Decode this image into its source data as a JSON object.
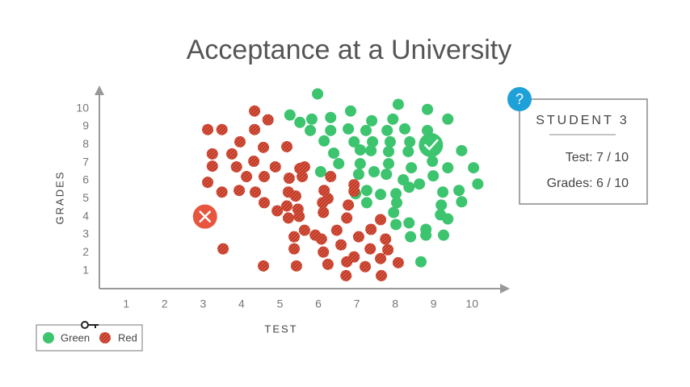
{
  "chart_data": {
    "type": "scatter",
    "title": "Acceptance at a University",
    "x_label": "TEST",
    "y_label": "GRADES",
    "xlim": [
      0.3,
      10.9
    ],
    "ylim": [
      0,
      11.1
    ],
    "xticks": [
      1,
      2,
      3,
      4,
      5,
      6,
      7,
      8,
      9,
      10
    ],
    "yticks": [
      1,
      2,
      3,
      4,
      5,
      6,
      7,
      8,
      9,
      10
    ],
    "grid": false,
    "legend": "bottom-left",
    "series": [
      {
        "name": "Green",
        "color": "#3dc46f",
        "hatch": false,
        "x": [
          5.98,
          6.84,
          8.08,
          8.84,
          5.26,
          5.83,
          6.32,
          5.52,
          7.39,
          7.94,
          9.37,
          5.79,
          6.32,
          6.78,
          7.24,
          7.79,
          8.25,
          8.84,
          6.15,
          6.93,
          7.41,
          7.87,
          8.38,
          6.4,
          7.09,
          7.37,
          7.83,
          8.34,
          9.73,
          6.53,
          7.09,
          7.83,
          8.42,
          8.97,
          9.37,
          10.04,
          6.06,
          7.05,
          7.45,
          7.77,
          8.21,
          8.63,
          8.99,
          10.15,
          6.97,
          7.26,
          7.62,
          8.02,
          8.36,
          9.24,
          9.66,
          7.26,
          8.04,
          9.2,
          9.73,
          7.96,
          9.18,
          9.37,
          8.02,
          8.36,
          8.8,
          8.8,
          9.26,
          8.4,
          8.67
        ],
        "values": [
          10.81,
          9.86,
          10.23,
          9.95,
          9.64,
          9.41,
          9.5,
          9.23,
          9.32,
          9.41,
          9.41,
          8.78,
          8.78,
          8.87,
          8.78,
          8.78,
          8.87,
          8.78,
          8.2,
          8.15,
          8.15,
          8.15,
          8.15,
          7.52,
          7.7,
          7.66,
          7.61,
          7.61,
          7.66,
          6.94,
          6.94,
          6.94,
          6.71,
          7.07,
          6.71,
          6.71,
          6.49,
          6.35,
          6.49,
          6.35,
          6.04,
          5.81,
          6.26,
          5.81,
          5.27,
          5.45,
          5.23,
          5.27,
          5.63,
          5.36,
          5.45,
          4.77,
          4.77,
          4.64,
          4.82,
          4.23,
          4.1,
          3.87,
          3.56,
          3.65,
          3.29,
          2.97,
          2.97,
          2.88,
          1.49
        ]
      },
      {
        "name": "Red",
        "color": "#e8553f",
        "hatch": true,
        "x": [
          4.34,
          3.12,
          3.49,
          4.34,
          4.69,
          3.96,
          4.57,
          5.18,
          3.24,
          3.75,
          4.32,
          3.24,
          3.87,
          4.13,
          4.59,
          4.88,
          5.52,
          5.64,
          5.24,
          5.58,
          6.32,
          3.12,
          3.49,
          3.94,
          4.36,
          5.22,
          5.41,
          6.15,
          6.25,
          6.93,
          6.93,
          4.59,
          4.93,
          5.18,
          5.47,
          5.22,
          5.5,
          6.11,
          6.13,
          6.78,
          6.74,
          7.62,
          5.37,
          5.64,
          5.92,
          6.08,
          6.48,
          7.05,
          7.37,
          7.75,
          3.52,
          5.37,
          6.13,
          6.59,
          7.35,
          7.81,
          4.57,
          5.43,
          6.25,
          6.74,
          6.93,
          7.22,
          7.62,
          8.08,
          6.72,
          7.64
        ],
        "values": [
          9.86,
          8.83,
          8.83,
          8.83,
          9.37,
          8.15,
          7.84,
          7.88,
          7.48,
          7.48,
          7.07,
          6.8,
          6.76,
          6.22,
          6.22,
          6.76,
          6.67,
          6.76,
          6.13,
          6.22,
          6.22,
          5.9,
          5.36,
          5.45,
          5.36,
          5.36,
          5.14,
          5.45,
          5.0,
          5.77,
          5.41,
          4.77,
          4.32,
          4.59,
          4.41,
          3.92,
          4.01,
          4.77,
          4.23,
          4.64,
          3.92,
          3.83,
          2.88,
          3.24,
          2.97,
          2.75,
          3.24,
          2.88,
          3.29,
          2.75,
          2.21,
          2.21,
          2.03,
          2.43,
          2.21,
          2.16,
          1.26,
          1.26,
          1.35,
          1.49,
          1.76,
          1.22,
          1.67,
          1.44,
          0.72,
          0.72
        ]
      }
    ],
    "markers": [
      {
        "x": 3.05,
        "y": 4.0,
        "color": "#e8553f",
        "symbol": "cross"
      },
      {
        "x": 8.93,
        "y": 7.97,
        "color": "#3dc46f",
        "symbol": "check"
      }
    ]
  },
  "card": {
    "badge": "?",
    "title": "STUDENT 3",
    "lines": [
      "Test: 7 / 10",
      "Grades: 6 / 10"
    ]
  }
}
